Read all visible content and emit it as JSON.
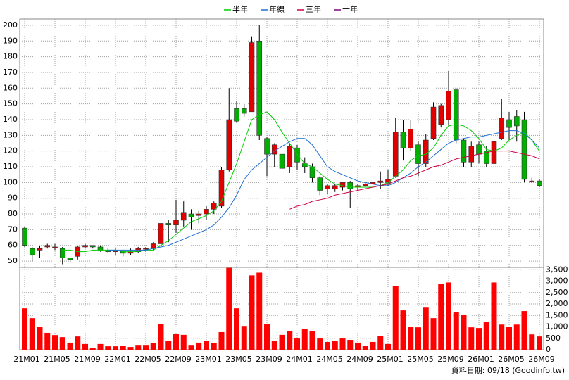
{
  "chart_data": [
    {
      "type": "candlestick",
      "categories": [
        "21M01",
        null,
        null,
        null,
        "21M05",
        null,
        null,
        null,
        "21M09",
        null,
        null,
        null,
        "22M01",
        null,
        null,
        null,
        "22M05",
        null,
        null,
        null,
        "22M09",
        null,
        null,
        null,
        "23M01",
        null,
        null,
        null,
        "23M05",
        null,
        null,
        null,
        "23M09",
        null,
        null,
        null,
        "24M01",
        null,
        null,
        null,
        "24M05",
        null,
        null,
        null,
        "24M09",
        null,
        null,
        null,
        "25M01",
        null,
        null,
        null,
        "25M05",
        null,
        null,
        null,
        "25M09",
        null,
        null,
        null,
        "26M01",
        null,
        null,
        null,
        "26M05",
        null,
        null,
        null,
        "26M09"
      ],
      "ohlc": {
        "open": [
          71,
          58,
          57,
          59,
          59,
          58,
          52,
          53,
          59,
          60,
          59,
          57,
          56,
          56,
          55,
          56,
          58,
          58,
          61,
          74,
          73,
          76,
          80,
          79,
          80,
          83,
          85,
          108,
          147,
          147,
          145,
          190,
          128,
          118,
          118,
          110,
          122,
          112,
          110,
          103,
          96,
          96,
          97,
          100,
          97,
          98,
          99,
          100,
          100,
          104,
          132,
          122,
          124,
          112,
          128,
          137,
          140,
          159,
          127,
          113,
          124,
          120,
          112,
          128,
          140,
          142,
          140,
          101,
          101
        ],
        "high": [
          72,
          59,
          60,
          61,
          61,
          59,
          54,
          60,
          61,
          60,
          60,
          58,
          58,
          57,
          58,
          59,
          59,
          62,
          84,
          76,
          89,
          88,
          83,
          82,
          85,
          88,
          110,
          160,
          152,
          150,
          193,
          200,
          129,
          125,
          121,
          125,
          124,
          116,
          112,
          104,
          99,
          99,
          100,
          101,
          99,
          100,
          101,
          107,
          108,
          141,
          140,
          140,
          126,
          131,
          151,
          150,
          171,
          160,
          128,
          126,
          126,
          123,
          131,
          153,
          145,
          146,
          145,
          103,
          102
        ],
        "low": [
          59,
          50,
          52,
          58,
          57,
          48,
          49,
          51,
          58,
          58,
          56,
          55,
          54,
          53,
          54,
          55,
          56,
          57,
          60,
          62,
          68,
          72,
          70,
          74,
          76,
          80,
          84,
          107,
          138,
          142,
          145,
          127,
          104,
          110,
          106,
          106,
          108,
          106,
          100,
          92,
          93,
          94,
          95,
          84,
          95,
          97,
          97,
          96,
          98,
          103,
          114,
          120,
          104,
          110,
          127,
          135,
          136,
          125,
          110,
          110,
          112,
          110,
          110,
          127,
          127,
          126,
          100,
          100,
          97
        ],
        "close": [
          60,
          54,
          58,
          60,
          59,
          52,
          51,
          59,
          60,
          59,
          57,
          56,
          57,
          55,
          56,
          58,
          58,
          61,
          74,
          73,
          76,
          81,
          78,
          80,
          83,
          87,
          108,
          140,
          139,
          144,
          189,
          130,
          118,
          124,
          109,
          123,
          113,
          110,
          103,
          95,
          98,
          98,
          100,
          96,
          98,
          99,
          100,
          101,
          102,
          132,
          122,
          134,
          112,
          127,
          148,
          149,
          158,
          127,
          113,
          123,
          118,
          112,
          126,
          141,
          135,
          136,
          102,
          101,
          98
        ]
      },
      "up_color": "#e00000",
      "down_color": "#00b000",
      "series": [
        {
          "name": "半年",
          "color": "#00cc00",
          "values": [
            null,
            null,
            null,
            null,
            null,
            57,
            57,
            56,
            56,
            57,
            57,
            57,
            57,
            56,
            56,
            56,
            57,
            57,
            60,
            63,
            67,
            71,
            75,
            77,
            79,
            82,
            88,
            100,
            112,
            126,
            140,
            143,
            145,
            140,
            132,
            125,
            118,
            112,
            110,
            106,
            102,
            99,
            98,
            97,
            97,
            97,
            97,
            98,
            100,
            104,
            108,
            114,
            117,
            118,
            122,
            130,
            136,
            137,
            136,
            133,
            128,
            121,
            120,
            122,
            127,
            130,
            132,
            127,
            120
          ]
        },
        {
          "name": "年線",
          "color": "#1f6fd6",
          "values": [
            null,
            null,
            null,
            null,
            null,
            null,
            null,
            null,
            null,
            null,
            null,
            57,
            57,
            57,
            57,
            57,
            57,
            58,
            59,
            60,
            62,
            64,
            66,
            68,
            70,
            73,
            78,
            84,
            92,
            102,
            108,
            112,
            116,
            120,
            123,
            126,
            128,
            128,
            124,
            117,
            110,
            107,
            105,
            103,
            101,
            100,
            99,
            98,
            98,
            100,
            103,
            106,
            110,
            113,
            117,
            121,
            125,
            127,
            128,
            129,
            129,
            130,
            131,
            132,
            133,
            133,
            131,
            127,
            122
          ]
        },
        {
          "name": "三年",
          "color": "#cc0044",
          "values": [
            null,
            null,
            null,
            null,
            null,
            null,
            null,
            null,
            null,
            null,
            null,
            null,
            null,
            null,
            null,
            null,
            null,
            null,
            null,
            null,
            null,
            null,
            null,
            null,
            null,
            null,
            null,
            null,
            null,
            null,
            null,
            null,
            null,
            null,
            null,
            83,
            85,
            86,
            88,
            89,
            90,
            92,
            93,
            94,
            95,
            96,
            97,
            98,
            99,
            101,
            103,
            104,
            106,
            108,
            110,
            111,
            113,
            115,
            116,
            117,
            118,
            119,
            120,
            120,
            120,
            119,
            118,
            117,
            115
          ]
        },
        {
          "name": "十年",
          "color": "#800080",
          "values": [
            null,
            null,
            null,
            null,
            null,
            null,
            null,
            null,
            null,
            null,
            null,
            null,
            null,
            null,
            null,
            null,
            null,
            null,
            null,
            null,
            null,
            null,
            null,
            null,
            null,
            null,
            null,
            null,
            null,
            null,
            null,
            null,
            null,
            null,
            null,
            null,
            null,
            null,
            null,
            null,
            null,
            null,
            null,
            null,
            null,
            null,
            null,
            null,
            null,
            null,
            null,
            null,
            null,
            null,
            null,
            null,
            null,
            null,
            null,
            null,
            null,
            null,
            null,
            null,
            null,
            null,
            null,
            null,
            null
          ]
        }
      ],
      "ylim": [
        46,
        204
      ],
      "yticks": [
        50,
        60,
        70,
        80,
        90,
        100,
        110,
        120,
        130,
        140,
        150,
        160,
        170,
        180,
        190,
        200
      ],
      "grid": true,
      "legend": "top"
    },
    {
      "type": "bar",
      "values": [
        1810,
        1380,
        1010,
        740,
        640,
        550,
        310,
        580,
        250,
        90,
        250,
        150,
        150,
        180,
        120,
        210,
        210,
        280,
        1130,
        370,
        700,
        650,
        210,
        310,
        370,
        280,
        770,
        3580,
        1810,
        1040,
        3250,
        3370,
        1130,
        370,
        650,
        830,
        490,
        920,
        830,
        490,
        340,
        370,
        490,
        430,
        310,
        180,
        340,
        610,
        250,
        2790,
        1720,
        1010,
        980,
        1870,
        1380,
        2880,
        2940,
        1630,
        1530,
        980,
        950,
        1200,
        2940,
        1100,
        1010,
        1100,
        1690,
        670,
        580
      ],
      "color": "#ff0000",
      "ylim": [
        0,
        3600
      ],
      "yticks": [
        0,
        500,
        {
          "value": 1000,
          "label": "1,000"
        },
        {
          "value": 1500,
          "label": "1,500"
        },
        {
          "value": 2000,
          "label": "2,000"
        },
        {
          "value": 2500,
          "label": "2,500"
        },
        {
          "value": 3000,
          "label": "3,000"
        },
        {
          "value": 3500,
          "label": "3,500"
        }
      ],
      "grid": true
    }
  ],
  "source_note": "資料日期: 09/18  (Goodinfo.tw)"
}
